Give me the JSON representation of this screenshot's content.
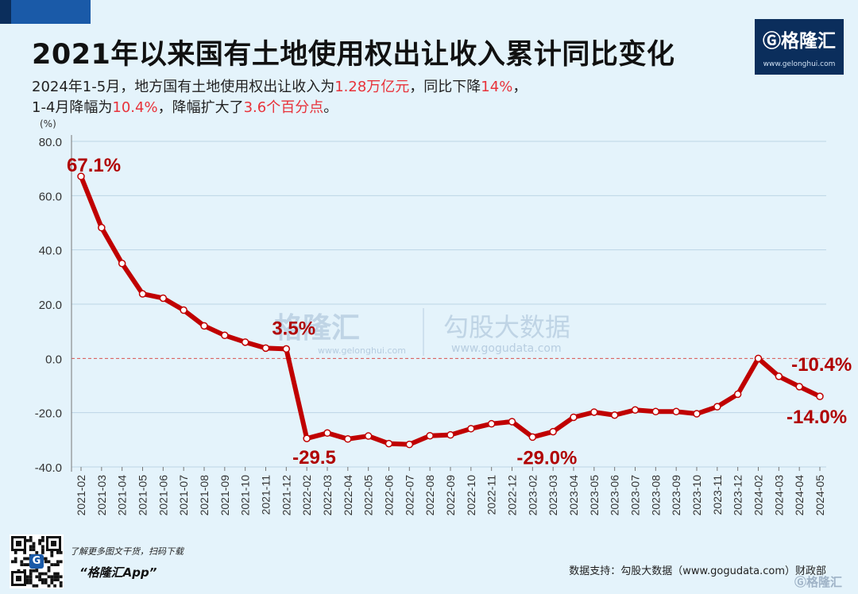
{
  "header": {
    "title": "2021年以来国有土地使用权出让收入累计同比变化",
    "subtitle_line1": [
      {
        "text": "2024年1-5月，地方国有土地使用权出让收入为",
        "hl": false
      },
      {
        "text": "1.28万亿元",
        "hl": true
      },
      {
        "text": "，同比下降",
        "hl": false
      },
      {
        "text": "14%",
        "hl": true
      },
      {
        "text": "，",
        "hl": false
      }
    ],
    "subtitle_line2": [
      {
        "text": "1-4月降幅为",
        "hl": false
      },
      {
        "text": "10.4%",
        "hl": true
      },
      {
        "text": "，降幅扩大了",
        "hl": false
      },
      {
        "text": "3.6个百分点",
        "hl": true
      },
      {
        "text": "。",
        "hl": false
      }
    ]
  },
  "logo": {
    "name": "格隆汇",
    "url": "www.gelonghui.com"
  },
  "watermark": {
    "brand1": "格隆汇",
    "url1": "www.gelonghui.com",
    "brand2": "勾股大数据",
    "url2": "www.gogudata.com"
  },
  "footer": {
    "app_promo": "了解更多图文干货，扫码下载",
    "app_name": "“格隆汇App”",
    "source": "数据支持：勾股大数据（www.gogudata.com）财政部",
    "logo_text": "格隆汇"
  },
  "colors": {
    "line": "#c00000",
    "highlight": "#e8323a",
    "zero_line": "#d9534f",
    "brand_dark": "#0b2e5c",
    "brand_blue": "#1a5aa8"
  },
  "chart_data": {
    "type": "line",
    "y_unit": "(%)",
    "ylim": [
      -40,
      80
    ],
    "yticks": [
      "80.0",
      "60.0",
      "40.0",
      "20.0",
      "0.0",
      "-20.0",
      "-40.0"
    ],
    "grid": true,
    "categories": [
      "2021-02",
      "2021-03",
      "2021-04",
      "2021-05",
      "2021-06",
      "2021-07",
      "2021-08",
      "2021-09",
      "2021-10",
      "2021-11",
      "2021-12",
      "2022-02",
      "2022-03",
      "2022-04",
      "2022-05",
      "2022-06",
      "2022-07",
      "2022-08",
      "2022-09",
      "2022-10",
      "2022-11",
      "2022-12",
      "2023-02",
      "2023-03",
      "2023-04",
      "2023-05",
      "2023-06",
      "2023-07",
      "2023-08",
      "2023-09",
      "2023-10",
      "2023-11",
      "2023-12",
      "2024-02",
      "2024-03",
      "2024-04",
      "2024-05"
    ],
    "values": [
      67.1,
      48.2,
      35.0,
      23.8,
      22.2,
      17.8,
      12.0,
      8.5,
      6.0,
      3.8,
      3.5,
      -29.5,
      -27.5,
      -29.7,
      -28.6,
      -31.4,
      -31.7,
      -28.5,
      -28.2,
      -25.9,
      -24.1,
      -23.3,
      -29.0,
      -27.0,
      -21.7,
      -19.8,
      -20.9,
      -19.0,
      -19.6,
      -19.6,
      -20.4,
      -17.8,
      -13.2,
      0.0,
      -6.6,
      -10.4,
      -14.0
    ],
    "annotations": [
      {
        "index": 0,
        "label": "67.1%"
      },
      {
        "index": 10,
        "label": "3.5%"
      },
      {
        "index": 11,
        "label": "-29.5"
      },
      {
        "index": 22,
        "label": "-29.0%"
      },
      {
        "index": 35,
        "label": "-10.4%"
      },
      {
        "index": 36,
        "label": "-14.0%"
      }
    ]
  }
}
